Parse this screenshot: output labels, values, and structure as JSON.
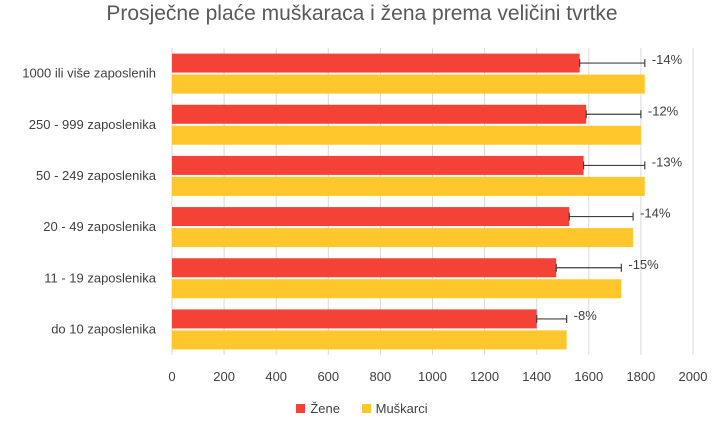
{
  "chart_data": {
    "type": "bar",
    "orientation": "horizontal",
    "title": "Prosječne plaće muškaraca i žena prema veličini tvrtke",
    "categories": [
      "1000 ili više zaposlenih",
      "250 - 999 zaposlenika",
      "50 - 249 zaposlenika",
      "20 - 49 zaposlenika",
      "11 - 19 zaposlenika",
      "do 10 zaposlenika"
    ],
    "series": [
      {
        "name": "Žene",
        "color": "#f44336",
        "values": [
          1565,
          1590,
          1580,
          1525,
          1475,
          1400
        ]
      },
      {
        "name": "Muškarci",
        "color": "#ffc72c",
        "values": [
          1815,
          1800,
          1815,
          1770,
          1725,
          1515
        ]
      }
    ],
    "gap_labels": [
      "-14%",
      "-12%",
      "-13%",
      "-14%",
      "-15%",
      "-8%"
    ],
    "xlim": [
      0,
      2000
    ],
    "xticks": [
      "0",
      "200",
      "400",
      "600",
      "800",
      "1000",
      "1200",
      "1400",
      "1600",
      "1800",
      "2000"
    ],
    "grid": true,
    "legend_position": "bottom"
  }
}
